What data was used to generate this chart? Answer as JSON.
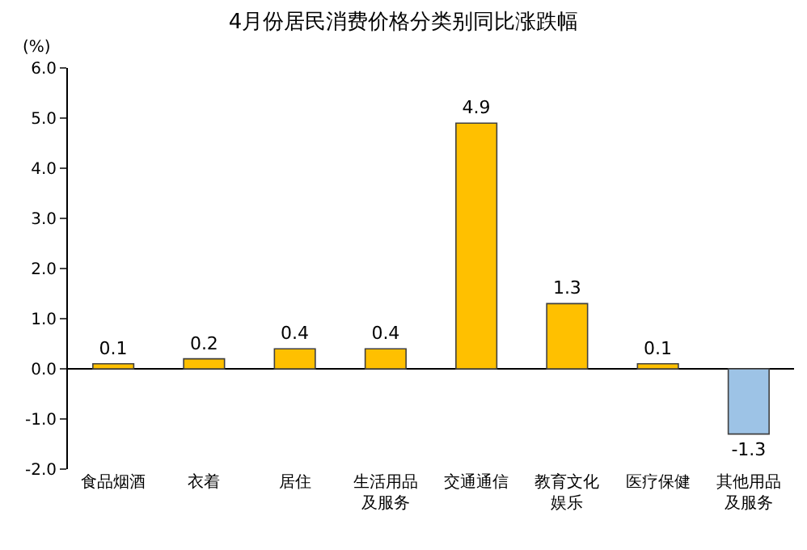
{
  "chart_data": {
    "type": "bar",
    "title": "4月份居民消费价格分类别同比涨跌幅",
    "ylabel": "(%)",
    "categories": [
      "食品烟酒",
      "衣着",
      "居住",
      "生活用品及服务",
      "交通通信",
      "教育文化娱乐",
      "医疗保健",
      "其他用品及服务"
    ],
    "values": [
      0.1,
      0.2,
      0.4,
      0.4,
      4.9,
      1.3,
      0.1,
      -1.3
    ],
    "colors": [
      "#ffc000",
      "#ffc000",
      "#ffc000",
      "#ffc000",
      "#ffc000",
      "#ffc000",
      "#ffc000",
      "#9dc3e6"
    ],
    "ylim": [
      -2,
      6
    ],
    "yticks": [
      {
        "value": -2,
        "label": "-2.0"
      },
      {
        "value": -1,
        "label": "-1.0"
      },
      {
        "value": 0,
        "label": "0.0"
      },
      {
        "value": 1,
        "label": "1.0"
      },
      {
        "value": 2,
        "label": "2.0"
      },
      {
        "value": 3,
        "label": "3.0"
      },
      {
        "value": 4,
        "label": "4.0"
      },
      {
        "value": 5,
        "label": "5.0"
      },
      {
        "value": 6,
        "label": "6.0"
      }
    ],
    "data_labels": true
  }
}
